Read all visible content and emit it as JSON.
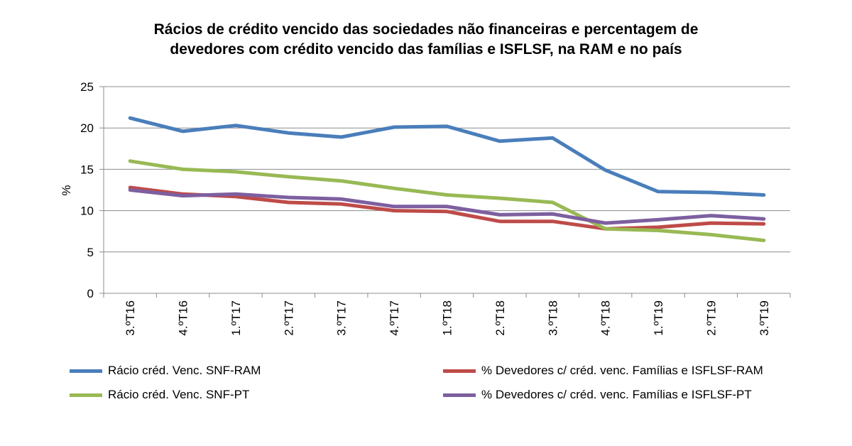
{
  "chart_data": {
    "type": "line",
    "title_lines": [
      "Rácios de crédito vencido das sociedades não financeiras e percentagem de",
      "devedores com crédito vencido das famílias e ISFLSF,  na RAM e no país"
    ],
    "xlabel": "",
    "ylabel": "%",
    "ylim": [
      0,
      25
    ],
    "yticks": [
      0,
      5,
      10,
      15,
      20,
      25
    ],
    "grid": true,
    "legend_position": "bottom",
    "categories": [
      "3.ºT16",
      "4.ºT16",
      "1.ºT17",
      "2.ºT17",
      "3.ºT17",
      "4.ºT17",
      "1.ºT18",
      "2.ºT18",
      "3.ºT18",
      "4.ºT18",
      "1.ºT19",
      "2.ºT19",
      "3.ºT19"
    ],
    "series": [
      {
        "name": "Rácio créd. Venc. SNF-RAM",
        "color": "#4a7ebb",
        "values": [
          21.2,
          19.6,
          20.3,
          19.4,
          18.9,
          20.1,
          20.2,
          18.4,
          18.8,
          14.9,
          12.3,
          12.2,
          11.9
        ]
      },
      {
        "name": "% Devedores c/ créd. venc. Famílias e ISFLSF-RAM",
        "color": "#be4b48",
        "values": [
          12.8,
          12.0,
          11.7,
          11.0,
          10.8,
          10.0,
          9.9,
          8.7,
          8.7,
          7.8,
          8.0,
          8.5,
          8.4
        ]
      },
      {
        "name": "Rácio créd. Venc. SNF-PT",
        "color": "#98b954",
        "values": [
          16.0,
          15.0,
          14.7,
          14.1,
          13.6,
          12.7,
          11.9,
          11.5,
          11.0,
          7.8,
          7.6,
          7.1,
          6.4
        ]
      },
      {
        "name": "% Devedores c/ créd. venc. Famílias e ISFLSF-PT",
        "color": "#7d5fa0",
        "values": [
          12.5,
          11.8,
          12.0,
          11.6,
          11.4,
          10.5,
          10.5,
          9.5,
          9.6,
          8.5,
          8.9,
          9.4,
          9.0
        ]
      }
    ]
  }
}
